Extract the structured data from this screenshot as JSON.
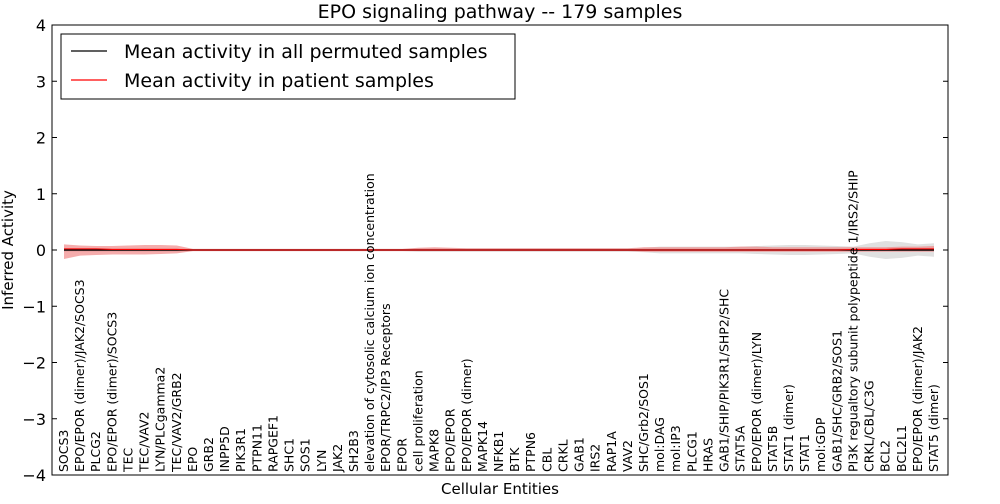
{
  "chart_data": {
    "type": "line",
    "title": "EPO signaling pathway -- 179 samples",
    "xlabel": "Cellular Entities",
    "ylabel": "Inferred Activity",
    "ylim": [
      -4,
      4
    ],
    "yticks": [
      -4,
      -3,
      -2,
      -1,
      0,
      1,
      2,
      3,
      4
    ],
    "ytick_labels": [
      "−4",
      "−3",
      "−2",
      "−1",
      "0",
      "1",
      "2",
      "3",
      "4"
    ],
    "legend_position": "top-left",
    "categories": [
      "SOCS3",
      "EPO/EPOR (dimer)/JAK2/SOCS3",
      "PLCG2",
      "EPO/EPOR (dimer)/SOCS3",
      "TEC",
      "TEC/VAV2",
      "LYN/PLCgamma2",
      "TEC/VAV2/GRB2",
      "EPO",
      "GRB2",
      "INPP5D",
      "PIK3R1",
      "PTPN11",
      "RAPGEF1",
      "SHC1",
      "SOS1",
      "LYN",
      "JAK2",
      "SH2B3",
      "elevation of cytosolic calcium ion concentration",
      "EPOR/TRPC2/IP3 Receptors",
      "EPOR",
      "cell proliferation",
      "MAPK8",
      "EPO/EPOR",
      "EPO/EPOR (dimer)",
      "MAPK14",
      "NFKB1",
      "BTK",
      "PTPN6",
      "CBL",
      "CRKL",
      "GAB1",
      "IRS2",
      "RAP1A",
      "VAV2",
      "SHC/Grb2/SOS1",
      "mol:DAG",
      "mol:IP3",
      "PLCG1",
      "HRAS",
      "GAB1/SHIP/PIK3R1/SHP2/SHC",
      "STAT5A",
      "EPO/EPOR (dimer)/LYN",
      "STAT5B",
      "STAT1 (dimer)",
      "STAT1",
      "mol:GDP",
      "GAB1/SHC/GRB2/SOS1",
      "PI3K regualtory subunit polypeptide 1/IRS2/SHIP",
      "CRKL/CBL/C3G",
      "BCL2",
      "BCL2L1",
      "EPO/EPOR (dimer)/JAK2",
      "STAT5 (dimer)"
    ],
    "series": [
      {
        "name": "Mean activity in all permuted samples",
        "color": "#000000",
        "band_color": "#bbbbbb",
        "values": [
          0,
          0,
          0,
          0,
          0,
          0,
          0,
          0,
          0,
          0,
          0,
          0,
          0,
          0,
          0,
          0,
          0,
          0,
          0,
          0,
          0,
          0,
          0,
          0,
          0,
          0,
          0,
          0,
          0,
          0,
          0,
          0,
          0,
          0,
          0,
          0,
          0,
          0,
          0,
          0,
          0,
          0,
          0,
          0,
          0,
          0,
          0,
          0,
          0,
          0,
          0,
          0,
          0,
          0,
          0
        ],
        "band_lower": [
          -0.03,
          -0.03,
          -0.03,
          -0.03,
          -0.03,
          -0.03,
          -0.03,
          -0.03,
          -0.02,
          -0.02,
          -0.02,
          -0.02,
          -0.02,
          -0.02,
          -0.02,
          -0.02,
          -0.02,
          -0.02,
          -0.02,
          -0.02,
          -0.02,
          -0.02,
          -0.03,
          -0.03,
          -0.03,
          -0.03,
          -0.03,
          -0.03,
          -0.03,
          -0.03,
          -0.03,
          -0.03,
          -0.03,
          -0.03,
          -0.03,
          -0.03,
          -0.04,
          -0.06,
          -0.06,
          -0.06,
          -0.06,
          -0.06,
          -0.06,
          -0.07,
          -0.08,
          -0.09,
          -0.09,
          -0.08,
          -0.07,
          -0.06,
          -0.12,
          -0.16,
          -0.14,
          -0.1,
          -0.12
        ],
        "band_upper": [
          0.03,
          0.03,
          0.03,
          0.03,
          0.03,
          0.03,
          0.03,
          0.03,
          0.02,
          0.02,
          0.02,
          0.02,
          0.02,
          0.02,
          0.02,
          0.02,
          0.02,
          0.02,
          0.02,
          0.02,
          0.02,
          0.02,
          0.03,
          0.03,
          0.03,
          0.03,
          0.03,
          0.03,
          0.03,
          0.03,
          0.03,
          0.03,
          0.03,
          0.03,
          0.03,
          0.03,
          0.04,
          0.06,
          0.06,
          0.06,
          0.06,
          0.06,
          0.06,
          0.07,
          0.08,
          0.09,
          0.09,
          0.08,
          0.07,
          0.06,
          0.12,
          0.16,
          0.14,
          0.1,
          0.12
        ]
      },
      {
        "name": "Mean activity in patient samples",
        "color": "#ff0000",
        "band_color": "#f08080",
        "values": [
          0.02,
          0.02,
          0.02,
          0.01,
          0.01,
          0.01,
          0.01,
          0.01,
          0,
          0,
          0,
          0,
          0,
          0,
          0,
          0,
          0,
          0,
          0,
          0,
          0,
          0,
          0,
          0,
          0,
          0,
          0,
          0,
          0,
          0,
          0,
          0,
          0,
          0,
          0,
          0,
          0,
          0,
          0,
          0,
          0,
          0,
          0,
          0,
          0,
          0,
          0,
          0,
          0,
          0.01,
          0.01,
          0.01,
          0.02,
          0.02,
          0.02
        ],
        "band_lower": [
          -0.16,
          -0.1,
          -0.09,
          -0.08,
          -0.08,
          -0.08,
          -0.07,
          -0.06,
          -0.02,
          -0.02,
          -0.02,
          -0.02,
          -0.02,
          -0.02,
          -0.02,
          -0.02,
          -0.02,
          -0.02,
          -0.02,
          -0.02,
          -0.02,
          -0.02,
          -0.02,
          -0.02,
          -0.02,
          -0.02,
          -0.02,
          -0.02,
          -0.02,
          -0.02,
          -0.02,
          -0.02,
          -0.02,
          -0.02,
          -0.02,
          -0.02,
          -0.03,
          -0.03,
          -0.03,
          -0.03,
          -0.03,
          -0.03,
          -0.03,
          -0.03,
          -0.03,
          -0.03,
          -0.03,
          -0.03,
          -0.03,
          -0.03,
          -0.03,
          -0.03,
          -0.03,
          -0.03,
          -0.03
        ],
        "band_upper": [
          0.1,
          0.08,
          0.07,
          0.07,
          0.08,
          0.09,
          0.09,
          0.08,
          0.02,
          0.02,
          0.02,
          0.02,
          0.02,
          0.02,
          0.02,
          0.02,
          0.02,
          0.02,
          0.02,
          0.02,
          0.02,
          0.02,
          0.04,
          0.05,
          0.04,
          0.03,
          0.03,
          0.03,
          0.03,
          0.03,
          0.03,
          0.03,
          0.03,
          0.03,
          0.03,
          0.03,
          0.05,
          0.05,
          0.05,
          0.05,
          0.05,
          0.05,
          0.06,
          0.06,
          0.05,
          0.05,
          0.05,
          0.05,
          0.05,
          0.05,
          0.05,
          0.05,
          0.06,
          0.06,
          0.07
        ]
      }
    ]
  }
}
